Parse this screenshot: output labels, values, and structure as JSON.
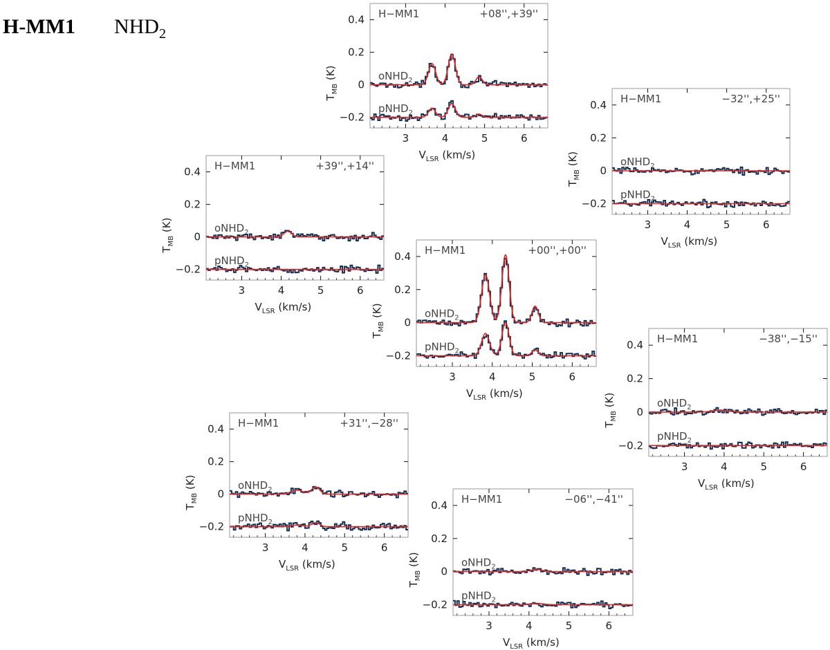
{
  "title": {
    "source": "H-MM1",
    "molecule": "NHD",
    "molecule_sub": "2"
  },
  "colors": {
    "data": "#0f2f55",
    "fit": "#e8231b",
    "axis": "#999999",
    "text": "#444444",
    "tick": "#111111"
  },
  "chart_data": {
    "type": "line",
    "shared": {
      "xlabel": "V",
      "xlabel_sub": "LSR",
      "xlabel_unit": " (km/s)",
      "ylabel": "T",
      "ylabel_sub": "MB",
      "ylabel_unit": " (K)",
      "xlim": [
        2.1,
        6.6
      ],
      "ylim": [
        -0.265,
        0.5
      ],
      "xticks": [
        3,
        4,
        5,
        6
      ],
      "yticks": [
        0.4,
        0.2,
        0,
        -0.2
      ],
      "ytick_labels": [
        "0.4",
        "0.2",
        "0",
        "−0.2"
      ],
      "series_labels": [
        {
          "prefix": "oNHD",
          "sub": "2",
          "baseline": 0
        },
        {
          "prefix": "pNHD",
          "sub": "2",
          "baseline": -0.2
        }
      ],
      "source_label": "H−MM1",
      "grid": false
    },
    "panels": [
      {
        "id": "p-08-39",
        "offset": "+08'',+39''",
        "fit_components": [
          {
            "baseline": 0,
            "peaks": [
              [
                3.67,
                0.13,
                0.09
              ],
              [
                4.17,
                0.19,
                0.09
              ],
              [
                4.86,
                0.05,
                0.08
              ]
            ]
          },
          {
            "baseline": -0.2,
            "peaks": [
              [
                3.67,
                0.055,
                0.09
              ],
              [
                4.17,
                0.085,
                0.09
              ],
              [
                4.86,
                0.02,
                0.08
              ]
            ]
          }
        ],
        "noise": 0.012
      },
      {
        "id": "p-32-25",
        "offset": "−32'',+25''",
        "fit_components": [
          {
            "baseline": 0,
            "peaks": []
          },
          {
            "baseline": -0.2,
            "peaks": []
          }
        ],
        "noise": 0.012
      },
      {
        "id": "p39-14",
        "offset": "+39'',+14''",
        "fit_components": [
          {
            "baseline": 0,
            "peaks": [
              [
                4.17,
                0.035,
                0.1
              ]
            ]
          },
          {
            "baseline": -0.2,
            "peaks": []
          }
        ],
        "noise": 0.013
      },
      {
        "id": "p00-00",
        "offset": "+00'',+00''",
        "fit_components": [
          {
            "baseline": 0,
            "peaks": [
              [
                3.83,
                0.29,
                0.1
              ],
              [
                4.33,
                0.41,
                0.09
              ],
              [
                5.07,
                0.1,
                0.08
              ]
            ]
          },
          {
            "baseline": -0.2,
            "peaks": [
              [
                3.83,
                0.135,
                0.1
              ],
              [
                4.33,
                0.2,
                0.09
              ],
              [
                5.07,
                0.035,
                0.08
              ]
            ]
          }
        ],
        "noise": 0.013
      },
      {
        "id": "p-38-15",
        "offset": "−38'',−15''",
        "fit_components": [
          {
            "baseline": 0,
            "peaks": [
              [
                3.9,
                0.01,
                0.2
              ]
            ]
          },
          {
            "baseline": -0.2,
            "peaks": []
          }
        ],
        "noise": 0.012
      },
      {
        "id": "p31-28",
        "offset": "+31'',−28''",
        "fit_components": [
          {
            "baseline": 0,
            "peaks": [
              [
                3.8,
                0.025,
                0.15
              ],
              [
                4.27,
                0.045,
                0.1
              ]
            ]
          },
          {
            "baseline": -0.2,
            "peaks": [
              [
                3.8,
                0.01,
                0.15
              ],
              [
                4.27,
                0.025,
                0.1
              ]
            ]
          }
        ],
        "noise": 0.014
      },
      {
        "id": "p-06-41",
        "offset": "−06'',−41''",
        "fit_components": [
          {
            "baseline": 0,
            "peaks": [
              [
                4.2,
                0.012,
                0.15
              ]
            ]
          },
          {
            "baseline": -0.2,
            "peaks": [
              [
                4.2,
                0.008,
                0.15
              ]
            ]
          }
        ],
        "noise": 0.012
      }
    ]
  }
}
